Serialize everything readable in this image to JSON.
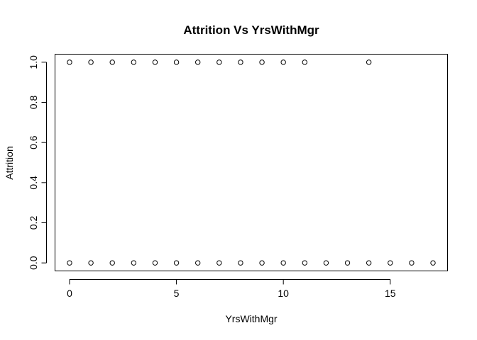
{
  "chart_data": {
    "type": "scatter",
    "title": "Attrition Vs YrsWithMgr",
    "xlabel": "YrsWithMgr",
    "ylabel": "Attrition",
    "xlim": [
      -0.68,
      17.68
    ],
    "ylim": [
      -0.04,
      1.04
    ],
    "x_ticks": [
      0,
      5,
      10,
      15
    ],
    "x_tick_labels": [
      "0",
      "5",
      "10",
      "15"
    ],
    "y_ticks": [
      0.0,
      0.2,
      0.4,
      0.6,
      0.8,
      1.0
    ],
    "y_tick_labels": [
      "0.0",
      "0.2",
      "0.4",
      "0.6",
      "0.8",
      "1.0"
    ],
    "grid": false,
    "marker": "open-circle",
    "points": [
      {
        "x": 0,
        "y": 1
      },
      {
        "x": 1,
        "y": 1
      },
      {
        "x": 2,
        "y": 1
      },
      {
        "x": 3,
        "y": 1
      },
      {
        "x": 4,
        "y": 1
      },
      {
        "x": 5,
        "y": 1
      },
      {
        "x": 6,
        "y": 1
      },
      {
        "x": 7,
        "y": 1
      },
      {
        "x": 8,
        "y": 1
      },
      {
        "x": 9,
        "y": 1
      },
      {
        "x": 10,
        "y": 1
      },
      {
        "x": 11,
        "y": 1
      },
      {
        "x": 14,
        "y": 1
      },
      {
        "x": 0,
        "y": 0
      },
      {
        "x": 1,
        "y": 0
      },
      {
        "x": 2,
        "y": 0
      },
      {
        "x": 3,
        "y": 0
      },
      {
        "x": 4,
        "y": 0
      },
      {
        "x": 5,
        "y": 0
      },
      {
        "x": 6,
        "y": 0
      },
      {
        "x": 7,
        "y": 0
      },
      {
        "x": 8,
        "y": 0
      },
      {
        "x": 9,
        "y": 0
      },
      {
        "x": 10,
        "y": 0
      },
      {
        "x": 11,
        "y": 0
      },
      {
        "x": 12,
        "y": 0
      },
      {
        "x": 13,
        "y": 0
      },
      {
        "x": 14,
        "y": 0
      },
      {
        "x": 15,
        "y": 0
      },
      {
        "x": 16,
        "y": 0
      },
      {
        "x": 17,
        "y": 0
      }
    ]
  }
}
